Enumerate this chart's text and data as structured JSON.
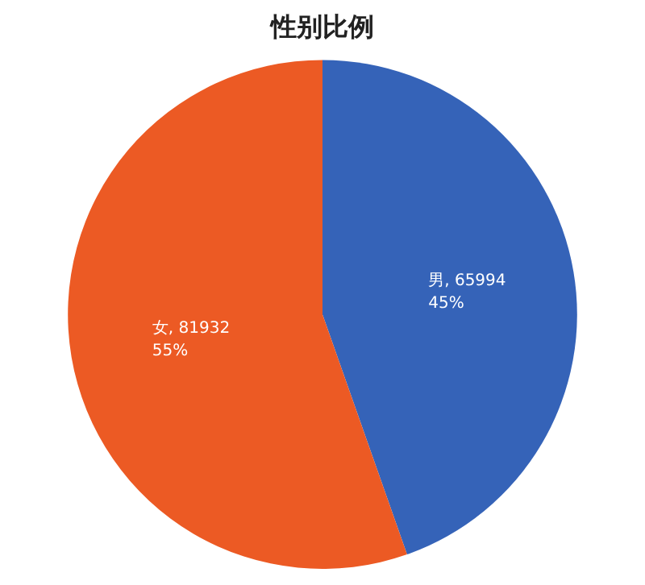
{
  "chart_data": {
    "type": "pie",
    "title": "性别比例",
    "categories": [
      "男",
      "女"
    ],
    "values": [
      65994,
      81932
    ],
    "colors": [
      "#3563b8",
      "#ec5a24"
    ],
    "value_labels": [
      "65994\n45%",
      "81932\n55%"
    ],
    "legend": false
  }
}
